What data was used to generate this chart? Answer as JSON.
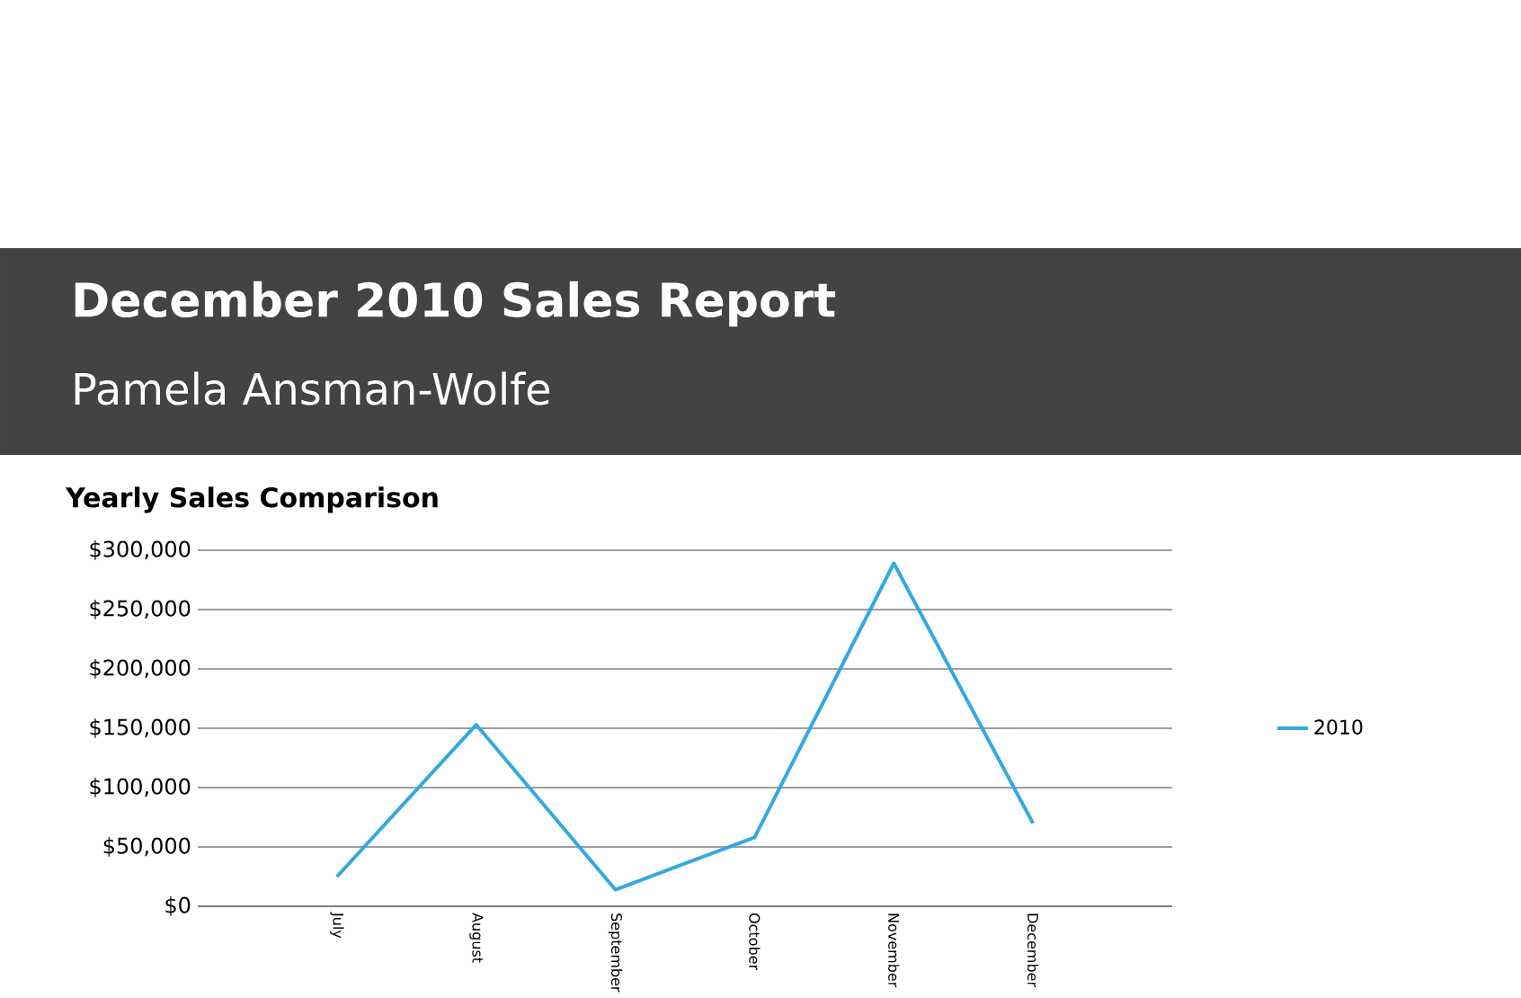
{
  "chart_data": {
    "type": "line",
    "title": "December 2010 Sales Report",
    "subtitle": "Pamela Ansman-Wolfe",
    "annotations": [
      "Yearly Sales Comparison"
    ],
    "categories": [
      "July",
      "August",
      "September",
      "October",
      "November",
      "December"
    ],
    "series": [
      {
        "name": "2010",
        "color": "#33a9e0",
        "values": [
          25000,
          153000,
          14000,
          58000,
          289000,
          70000
        ]
      }
    ],
    "ylim": [
      0,
      300000
    ],
    "yticks": [
      {
        "value": 0,
        "label": "$0"
      },
      {
        "value": 50000,
        "label": "$50,000"
      },
      {
        "value": 100000,
        "label": "$100,000"
      },
      {
        "value": 150000,
        "label": "$150,000"
      },
      {
        "value": 200000,
        "label": "$200,000"
      },
      {
        "value": 250000,
        "label": "$250,000"
      },
      {
        "value": 300000,
        "label": "$300,000"
      }
    ],
    "grid": "y",
    "legend": "right"
  }
}
